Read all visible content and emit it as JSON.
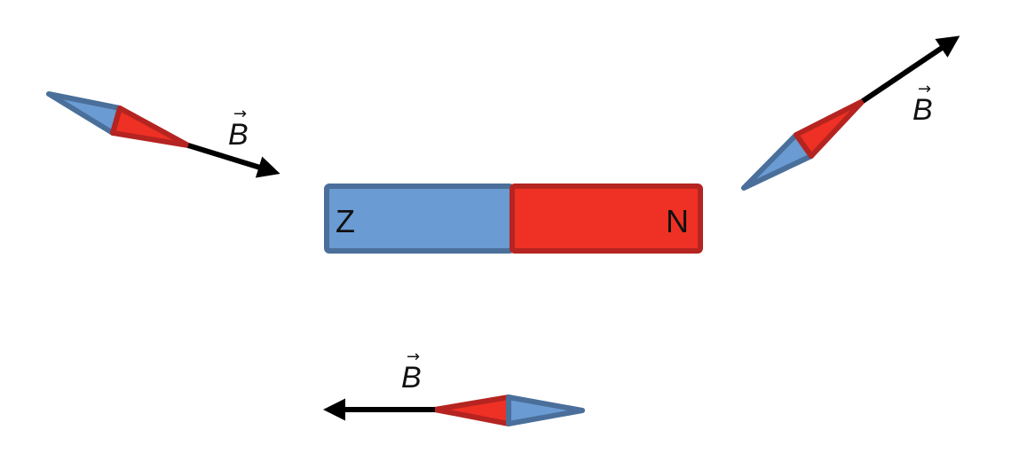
{
  "magnet": {
    "south_label": "Z",
    "north_label": "N"
  },
  "field_vectors": [
    {
      "symbol": "B",
      "arrow": "→"
    },
    {
      "symbol": "B",
      "arrow": "→"
    },
    {
      "symbol": "B",
      "arrow": "→"
    }
  ],
  "colors": {
    "north_fill": "#ee3124",
    "north_stroke": "#b52420",
    "south_fill": "#6a9bd2",
    "south_stroke": "#4a6f9a",
    "arrow": "#000000"
  }
}
